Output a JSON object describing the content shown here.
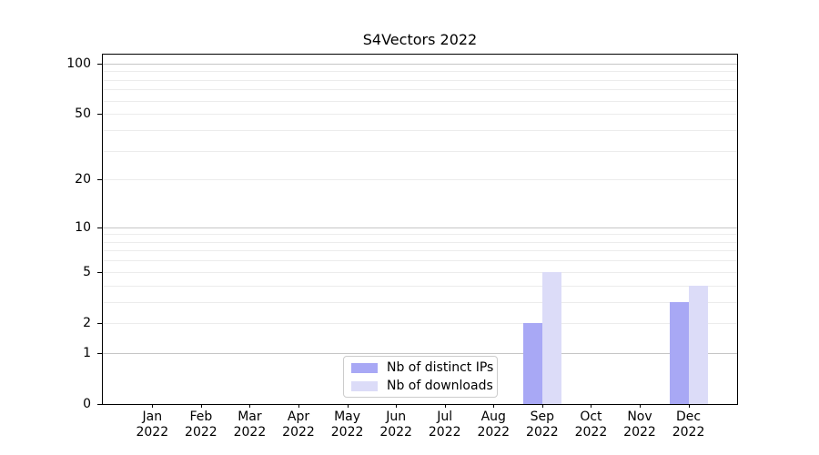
{
  "chart_data": {
    "type": "bar",
    "title": "S4Vectors 2022",
    "categories": [
      "Jan",
      "Feb",
      "Mar",
      "Apr",
      "May",
      "Jun",
      "Jul",
      "Aug",
      "Sep",
      "Oct",
      "Nov",
      "Dec"
    ],
    "category_year": "2022",
    "series": [
      {
        "name": "Nb of distinct IPs",
        "color": "#a8a8f5",
        "values": [
          0,
          0,
          0,
          0,
          0,
          0,
          0,
          0,
          2,
          0,
          0,
          3
        ]
      },
      {
        "name": "Nb of downloads",
        "color": "#dcdcf8",
        "values": [
          0,
          0,
          0,
          0,
          0,
          0,
          0,
          0,
          5,
          0,
          0,
          4
        ]
      }
    ],
    "yscale": "log1p",
    "ylim": [
      0,
      113
    ],
    "yticks": [
      0,
      1,
      2,
      5,
      10,
      20,
      50,
      100
    ],
    "major_gridlines": [
      1,
      10,
      100
    ],
    "minor_gridlines": [
      2,
      3,
      4,
      5,
      6,
      7,
      8,
      9,
      20,
      30,
      40,
      50,
      60,
      70,
      80,
      90
    ],
    "grid_color_major": "#c6c6c6",
    "grid_color_minor": "#ececec",
    "axis_color": "#000000",
    "legend_position": "lower center inside",
    "xlabel": "",
    "ylabel": ""
  }
}
